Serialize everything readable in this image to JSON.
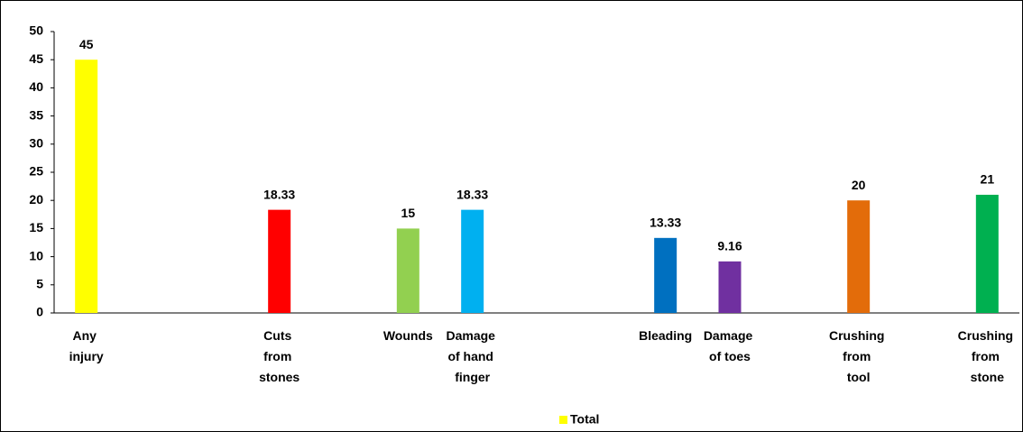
{
  "chart_data": {
    "type": "bar",
    "categories": [
      "Any injury",
      null,
      null,
      "Cuts from stones",
      null,
      "Wounds",
      "Damage of hand finger",
      null,
      null,
      "Bleading",
      "Damage of toes",
      null,
      "Crushing from tool",
      null,
      "Crushing from stone"
    ],
    "series": [
      {
        "name": "Total",
        "color": "#ffff00",
        "values": [
          45,
          null,
          null,
          18.33,
          null,
          15,
          18.33,
          null,
          null,
          13.33,
          9.16,
          null,
          20,
          null,
          21
        ],
        "colors": [
          "#ffff00",
          null,
          null,
          "#ff0000",
          null,
          "#92d050",
          "#00b0f0",
          null,
          null,
          "#0070c0",
          "#7030a0",
          null,
          "#e36c0a",
          null,
          "#00b050"
        ]
      }
    ],
    "ylim": [
      0,
      50
    ],
    "yticks": [
      0,
      5,
      10,
      15,
      20,
      25,
      30,
      35,
      40,
      45,
      50
    ],
    "legend": "bottom"
  }
}
